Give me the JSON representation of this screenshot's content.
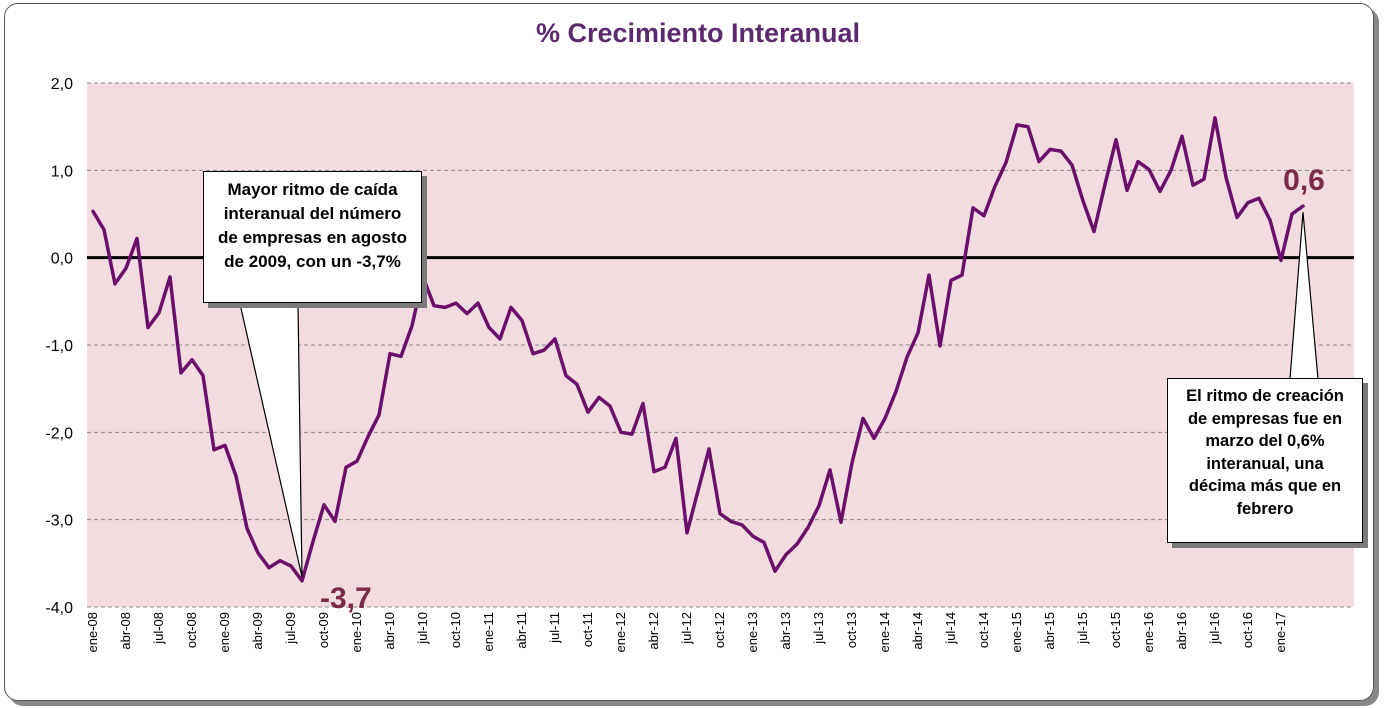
{
  "chart_data": {
    "type": "line",
    "title": "% Crecimiento Interanual",
    "xlabel": "",
    "ylabel": "",
    "ylim": [
      -4.0,
      2.0
    ],
    "y_ticks": [
      "2,0",
      "1,0",
      "0,0",
      "-1,0",
      "-2,0",
      "-3,0",
      "-4,0"
    ],
    "x_tick_labels": [
      "ene-08",
      "abr-08",
      "jul-08",
      "oct-08",
      "ene-09",
      "abr-09",
      "jul-09",
      "oct-09",
      "ene-10",
      "abr-10",
      "jul-10",
      "oct-10",
      "ene-11",
      "abr-11",
      "jul-11",
      "oct-11",
      "ene-12",
      "abr-12",
      "jul-12",
      "oct-12",
      "ene-13",
      "abr-13",
      "jul-13",
      "oct-13",
      "ene-14",
      "abr-14",
      "jul-14",
      "oct-14",
      "ene-15",
      "abr-15",
      "jul-15",
      "oct-15",
      "ene-16",
      "abr-16",
      "jul-16",
      "oct-16",
      "ene-17"
    ],
    "x_start": "ene-08",
    "x_end": "mar-17",
    "grid": true,
    "legend": "none",
    "series": [
      {
        "values": [
          0.53,
          0.32,
          -0.3,
          -0.12,
          0.22,
          -0.8,
          -0.63,
          -0.22,
          -1.32,
          -1.17,
          -1.35,
          -2.2,
          -2.15,
          -2.5,
          -3.1,
          -3.38,
          -3.55,
          -3.47,
          -3.53,
          -3.7,
          -3.25,
          -2.83,
          -3.02,
          -2.4,
          -2.33,
          -2.05,
          -1.8,
          -1.1,
          -1.13,
          -0.78,
          -0.22,
          -0.55,
          -0.57,
          -0.52,
          -0.64,
          -0.52,
          -0.8,
          -0.93,
          -0.57,
          -0.72,
          -1.1,
          -1.06,
          -0.93,
          -1.35,
          -1.45,
          -1.77,
          -1.6,
          -1.7,
          -2.0,
          -2.02,
          -1.67,
          -2.45,
          -2.4,
          -2.07,
          -3.15,
          -2.67,
          -2.19,
          -2.93,
          -3.02,
          -3.06,
          -3.19,
          -3.26,
          -3.59,
          -3.4,
          -3.28,
          -3.09,
          -2.84,
          -2.43,
          -3.03,
          -2.35,
          -1.84,
          -2.07,
          -1.84,
          -1.53,
          -1.14,
          -0.86,
          -0.2,
          -1.01,
          -0.26,
          -0.2,
          0.57,
          0.48,
          0.82,
          1.09,
          1.52,
          1.5,
          1.1,
          1.24,
          1.22,
          1.06,
          0.65,
          0.3,
          0.84,
          1.35,
          0.77,
          1.1,
          1.01,
          0.76,
          1.0,
          1.39,
          0.83,
          0.9,
          1.6,
          0.92,
          0.46,
          0.63,
          0.68,
          0.43,
          -0.03,
          0.5,
          0.59
        ],
        "color": "#6b0f6b"
      }
    ],
    "annotations": [
      {
        "value_label": "-3,7",
        "date": "ago-09",
        "value": -3.7,
        "text": "Mayor ritmo de caída interanual del número de empresas en agosto de 2009,  con un -3,7%"
      },
      {
        "value_label": "0,6",
        "date": "mar-17",
        "value": 0.6,
        "text": "El ritmo de creación de empresas fue en marzo del 0,6% interanual, una décima más que en febrero"
      }
    ],
    "colors": {
      "plot_background": "#f2dcdf",
      "line": "#6b0f6b",
      "title": "#5b2a6e",
      "value_label": "#7b2a4a",
      "zero_line": "#000000"
    }
  }
}
